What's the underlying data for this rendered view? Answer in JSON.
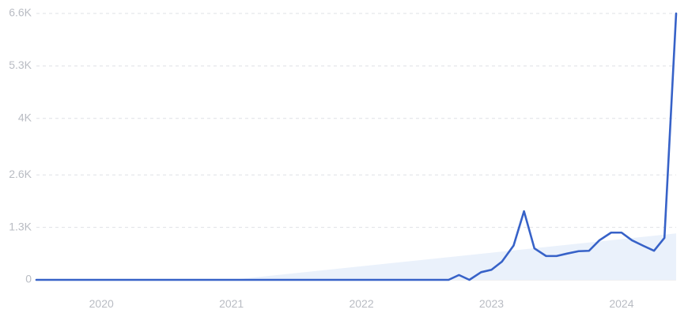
{
  "chart_data": {
    "type": "line",
    "title": "",
    "xlabel": "",
    "ylabel": "",
    "y_ticks": [
      {
        "value": 0,
        "label": "0"
      },
      {
        "value": 1300,
        "label": "1.3K"
      },
      {
        "value": 2600,
        "label": "2.6K"
      },
      {
        "value": 4000,
        "label": "4K"
      },
      {
        "value": 5300,
        "label": "5.3K"
      },
      {
        "value": 6600,
        "label": "6.6K"
      }
    ],
    "x_ticks": [
      {
        "value": 2020.0,
        "label": "2020"
      },
      {
        "value": 2021.0,
        "label": "2021"
      },
      {
        "value": 2022.0,
        "label": "2022"
      },
      {
        "value": 2023.0,
        "label": "2023"
      },
      {
        "value": 2024.0,
        "label": "2024"
      }
    ],
    "xlim": [
      2019.5,
      2024.42
    ],
    "ylim": [
      0,
      6600
    ],
    "grid": true,
    "legend": "none",
    "series": [
      {
        "x": [
          2019.5,
          2022.67,
          2022.75,
          2022.83,
          2022.92,
          2023.0,
          2023.08,
          2023.17,
          2023.25,
          2023.33,
          2023.42,
          2023.5,
          2023.58,
          2023.67,
          2023.75,
          2023.83,
          2023.92,
          2024.0,
          2024.08,
          2024.17,
          2024.25,
          2024.33,
          2024.42
        ],
        "y": [
          0,
          0,
          120,
          0,
          190,
          250,
          450,
          850,
          1700,
          780,
          590,
          590,
          650,
          710,
          720,
          980,
          1170,
          1170,
          980,
          840,
          720,
          1040,
          6600
        ],
        "color": "#3762c8"
      },
      {
        "x": [
          2021.0,
          2024.42
        ],
        "y": [
          0,
          1150
        ],
        "color": "#eaf1fb"
      }
    ]
  }
}
